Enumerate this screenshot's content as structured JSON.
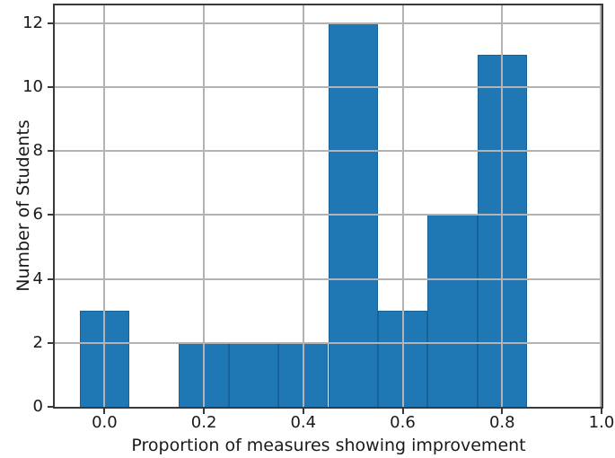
{
  "chart_data": {
    "type": "histogram",
    "xlabel": "Proportion of measures showing improvement",
    "ylabel": "Number of Students",
    "bin_edges": [
      -0.05,
      0.05,
      0.15,
      0.25,
      0.35,
      0.45,
      0.55,
      0.65,
      0.75,
      0.85
    ],
    "counts": [
      3,
      0,
      2,
      2,
      2,
      12,
      3,
      6,
      11
    ],
    "xlim": [
      -0.1,
      1.0
    ],
    "ylim": [
      0,
      12.55
    ],
    "grid": true,
    "grid_above_bars": true,
    "legend": "none",
    "xticks": {
      "values": [
        0.0,
        0.2,
        0.4,
        0.6,
        0.8,
        1.0
      ],
      "labels": [
        "0.0",
        "0.2",
        "0.4",
        "0.6",
        "0.8",
        "1.0"
      ]
    },
    "yticks": {
      "values": [
        0,
        2,
        4,
        6,
        8,
        10,
        12
      ],
      "labels": [
        "0",
        "2",
        "4",
        "6",
        "8",
        "10",
        "12"
      ]
    },
    "colors": {
      "bar_fill": "#1f77b4",
      "grid": "#b3b3b3",
      "spine": "#3a3a3a",
      "tick": "#3a3a3a",
      "text": "#1a1a1a",
      "background": "#ffffff"
    }
  }
}
